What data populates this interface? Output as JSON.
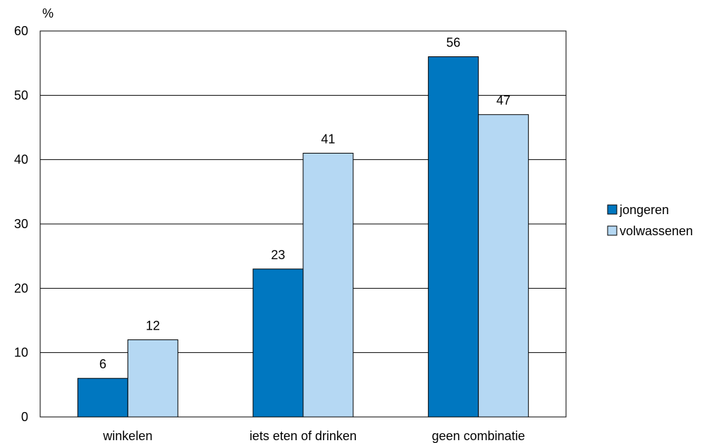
{
  "chart_data": {
    "type": "bar",
    "ylabel": "%",
    "ylim": [
      0,
      60
    ],
    "yticks": [
      0,
      10,
      20,
      30,
      40,
      50,
      60
    ],
    "categories": [
      "winkelen",
      "iets eten of drinken",
      "geen combinatie"
    ],
    "series": [
      {
        "name": "jongeren",
        "values": [
          6,
          23,
          56
        ],
        "color": "#0077C0"
      },
      {
        "name": "volwassenen",
        "values": [
          12,
          41,
          47
        ],
        "color": "#B5D8F3"
      }
    ],
    "grid": true,
    "data_labels": true,
    "legend": "right"
  }
}
